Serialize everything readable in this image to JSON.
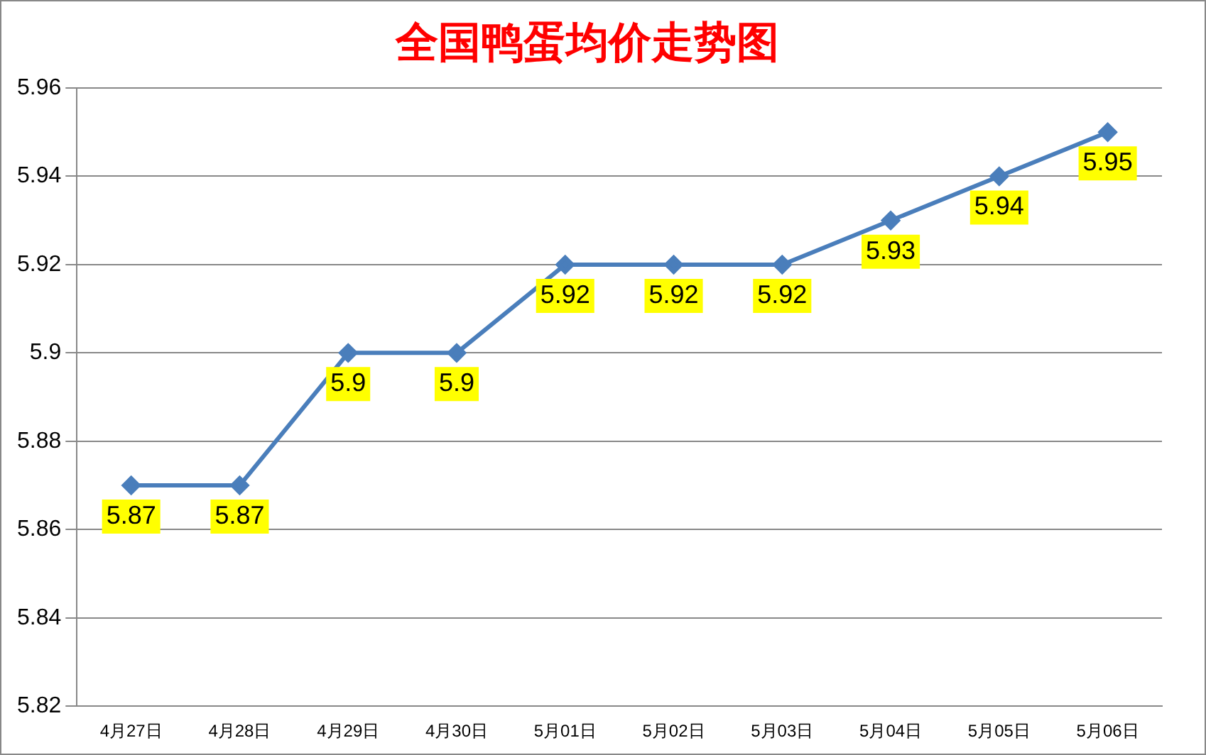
{
  "chart_data": {
    "type": "line",
    "title": "全国鸭蛋均价走势图",
    "categories": [
      "4月27日",
      "4月28日",
      "4月29日",
      "4月30日",
      "5月01日",
      "5月02日",
      "5月03日",
      "5月04日",
      "5月05日",
      "5月06日"
    ],
    "values": [
      5.87,
      5.87,
      5.9,
      5.9,
      5.92,
      5.92,
      5.92,
      5.93,
      5.94,
      5.95
    ],
    "color": "#4a7ebb",
    "ylim": [
      5.82,
      5.96
    ],
    "yticks": [
      5.82,
      5.84,
      5.86,
      5.88,
      5.9,
      5.92,
      5.94,
      5.96
    ],
    "grid": "y",
    "legend": false,
    "marker": "diamond",
    "line_style": "solid",
    "data_labels": true
  }
}
